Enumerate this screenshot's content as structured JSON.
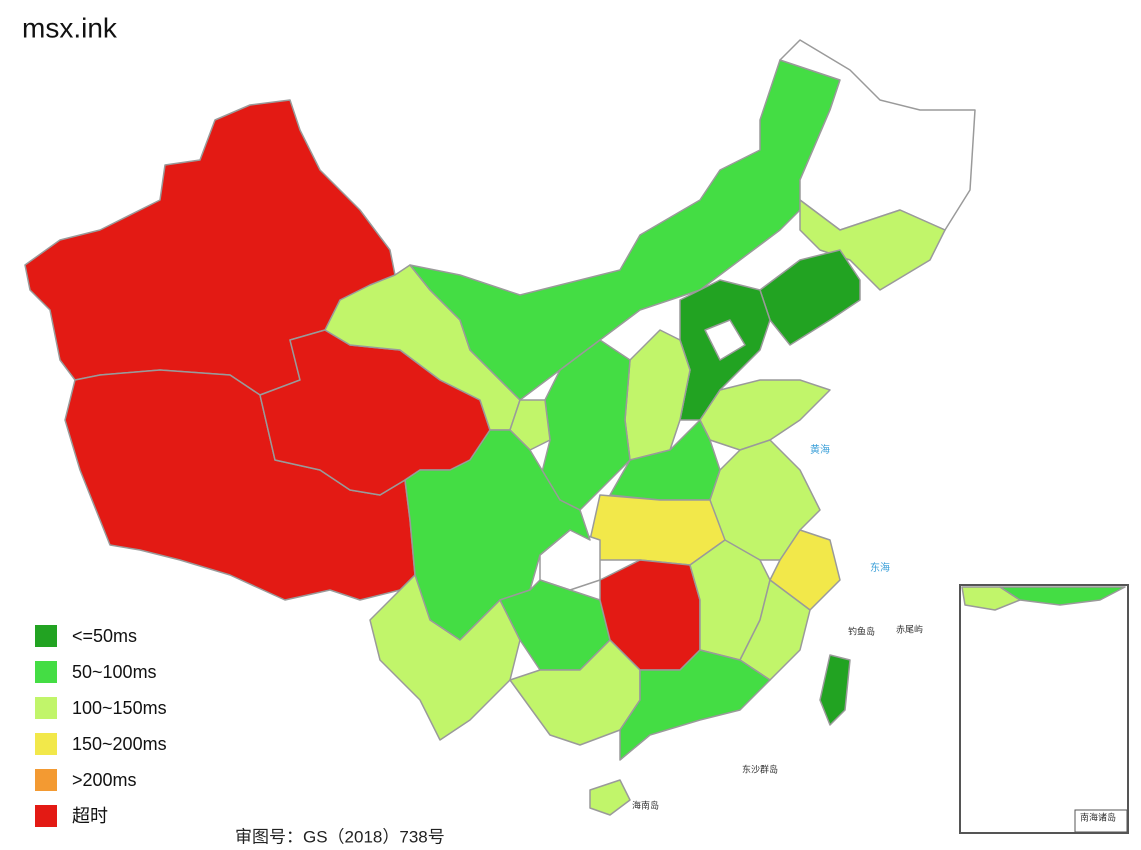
{
  "title": "msx.ink",
  "legend": [
    {
      "label": "<=50ms",
      "color": "#22a322"
    },
    {
      "label": "50~100ms",
      "color": "#44dd44"
    },
    {
      "label": "100~150ms",
      "color": "#c1f56a"
    },
    {
      "label": "150~200ms",
      "color": "#f2e84a"
    },
    {
      "label": ">200ms",
      "color": "#f39a32"
    },
    {
      "label": "超时",
      "color": "#e31a14"
    }
  ],
  "credit": "审图号：GS（2018）738号",
  "map_labels": {
    "yellow_sea": "黄海",
    "east_sea": "东海",
    "diaoyu": "钓鱼岛",
    "chiwei": "赤尾屿",
    "dongsha": "东沙群岛",
    "hainan": "海南岛",
    "inset": "南海诸岛"
  }
}
